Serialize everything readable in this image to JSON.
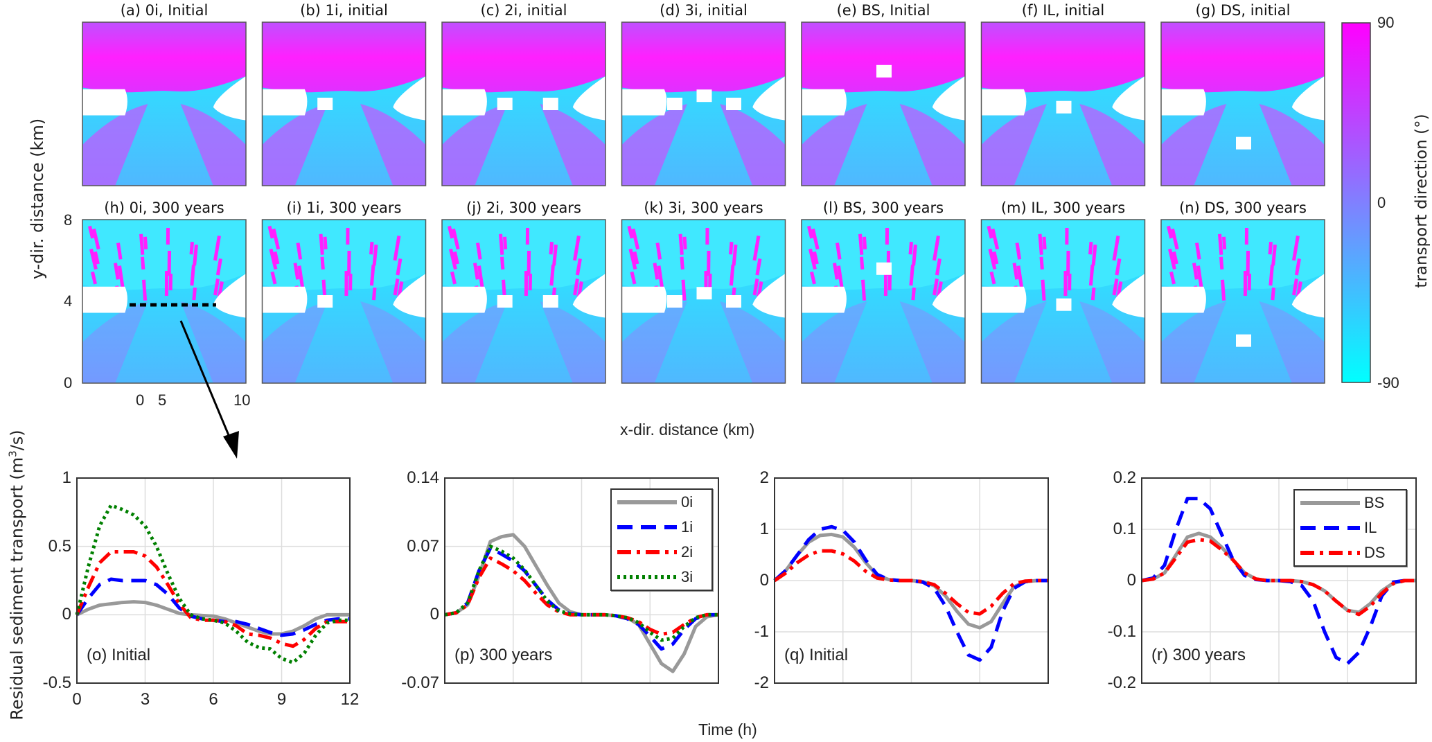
{
  "maps": {
    "panels": [
      {
        "label": "(a) 0i, Initial",
        "config": "0i",
        "time": "initial"
      },
      {
        "label": "(b) 1i, initial",
        "config": "1i",
        "time": "initial"
      },
      {
        "label": "(c) 2i, initial",
        "config": "2i",
        "time": "initial"
      },
      {
        "label": "(d) 3i, initial",
        "config": "3i",
        "time": "initial"
      },
      {
        "label": "(e) BS, Initial",
        "config": "BS",
        "time": "initial"
      },
      {
        "label": "(f) IL, initial",
        "config": "IL",
        "time": "initial"
      },
      {
        "label": "(g) DS, initial",
        "config": "DS",
        "time": "initial"
      },
      {
        "label": "(h) 0i, 300 years",
        "config": "0i",
        "time": "300"
      },
      {
        "label": "(i) 1i, 300 years",
        "config": "1i",
        "time": "300"
      },
      {
        "label": "(j) 2i, 300 years",
        "config": "2i",
        "time": "300"
      },
      {
        "label": "(k) 3i, 300 years",
        "config": "3i",
        "time": "300"
      },
      {
        "label": "(l) BS, 300 years",
        "config": "BS",
        "time": "300"
      },
      {
        "label": "(m) IL, 300 years",
        "config": "IL",
        "time": "300"
      },
      {
        "label": "(n) DS, 300 years",
        "config": "DS",
        "time": "300"
      }
    ],
    "ylabel": "y-dir. distance (km)",
    "xlabel": "x-dir. distance (km)",
    "yticks": [
      "8",
      "4",
      "0"
    ],
    "xticks": [
      "0",
      "5",
      "10"
    ],
    "colorbar": {
      "label": "transport direction (°)",
      "ticks": [
        "90",
        "0",
        "-90"
      ],
      "colors": [
        "#ff00ff",
        "#8080ff",
        "#00ffff"
      ]
    }
  },
  "bottom": {
    "ylabel": "Residual sediment transport (m",
    "ylabel_sup": "3",
    "ylabel_end": "/s)",
    "xlabel": "Time (h)",
    "xticks": [
      "0",
      "3",
      "6",
      "9",
      "12"
    ]
  },
  "chart_data": [
    {
      "type": "line",
      "title": "(o) Initial",
      "xlim": [
        0,
        12
      ],
      "ylim": [
        -0.5,
        1
      ],
      "yticks": [
        "1",
        "0.5",
        "0",
        "-0.5"
      ],
      "grid": true,
      "x": [
        0,
        0.5,
        1,
        1.5,
        2,
        2.5,
        3,
        3.5,
        4,
        4.5,
        5,
        5.5,
        6,
        6.5,
        7,
        7.5,
        8,
        8.5,
        9,
        9.5,
        10,
        10.5,
        11,
        11.5,
        12
      ],
      "series": [
        {
          "name": "0i",
          "color": "#999999",
          "style": "solid",
          "values": [
            0,
            0.04,
            0.07,
            0.08,
            0.09,
            0.095,
            0.09,
            0.07,
            0.04,
            0.01,
            0,
            -0.005,
            -0.01,
            -0.03,
            -0.06,
            -0.09,
            -0.12,
            -0.14,
            -0.14,
            -0.12,
            -0.08,
            -0.03,
            0,
            0,
            0
          ]
        },
        {
          "name": "1i",
          "color": "#0000ff",
          "style": "dash",
          "values": [
            0,
            0.12,
            0.22,
            0.26,
            0.25,
            0.25,
            0.25,
            0.22,
            0.15,
            0.05,
            -0.01,
            -0.03,
            -0.04,
            -0.05,
            -0.05,
            -0.07,
            -0.1,
            -0.13,
            -0.15,
            -0.14,
            -0.11,
            -0.07,
            -0.04,
            -0.03,
            -0.03
          ]
        },
        {
          "name": "2i",
          "color": "#ff0000",
          "style": "dashdot",
          "values": [
            0,
            0.2,
            0.38,
            0.46,
            0.46,
            0.46,
            0.43,
            0.35,
            0.22,
            0.08,
            -0.02,
            -0.04,
            -0.04,
            -0.05,
            -0.08,
            -0.14,
            -0.15,
            -0.17,
            -0.21,
            -0.23,
            -0.18,
            -0.1,
            -0.05,
            -0.05,
            -0.05
          ]
        },
        {
          "name": "3i",
          "color": "#008000",
          "style": "dot",
          "values": [
            0,
            0.35,
            0.65,
            0.8,
            0.77,
            0.73,
            0.65,
            0.5,
            0.3,
            0.12,
            0,
            -0.03,
            -0.04,
            -0.06,
            -0.12,
            -0.2,
            -0.24,
            -0.25,
            -0.32,
            -0.35,
            -0.28,
            -0.15,
            -0.06,
            -0.04,
            -0.04
          ]
        }
      ]
    },
    {
      "type": "line",
      "title": "(p) 300 years",
      "xlim": [
        0,
        12
      ],
      "ylim": [
        -0.07,
        0.14
      ],
      "yticks": [
        "0.14",
        "0.07",
        "0",
        "-0.07"
      ],
      "grid": true,
      "legend": "top-right",
      "x": [
        0,
        0.5,
        1,
        1.5,
        2,
        2.5,
        3,
        3.5,
        4,
        4.5,
        5,
        5.5,
        6,
        6.5,
        7,
        7.5,
        8,
        8.5,
        9,
        9.5,
        10,
        10.5,
        11,
        11.5,
        12
      ],
      "series": [
        {
          "name": "0i",
          "color": "#999999",
          "style": "solid",
          "values": [
            0,
            0.002,
            0.01,
            0.04,
            0.075,
            0.08,
            0.082,
            0.07,
            0.05,
            0.03,
            0.012,
            0.003,
            0,
            0,
            0,
            -0.001,
            -0.003,
            -0.01,
            -0.03,
            -0.05,
            -0.058,
            -0.04,
            -0.012,
            -0.002,
            0
          ]
        },
        {
          "name": "1i",
          "color": "#0000ff",
          "style": "dash",
          "values": [
            0,
            0.002,
            0.012,
            0.045,
            0.068,
            0.062,
            0.055,
            0.045,
            0.03,
            0.015,
            0.005,
            0.001,
            0,
            0,
            0,
            -0.001,
            -0.004,
            -0.01,
            -0.022,
            -0.035,
            -0.03,
            -0.015,
            -0.004,
            0,
            0
          ]
        },
        {
          "name": "2i",
          "color": "#ff0000",
          "style": "dashdot",
          "values": [
            0,
            0.002,
            0.01,
            0.038,
            0.058,
            0.052,
            0.045,
            0.035,
            0.022,
            0.01,
            0.003,
            0,
            0,
            0,
            0,
            -0.001,
            -0.003,
            -0.007,
            -0.015,
            -0.02,
            -0.018,
            -0.01,
            -0.003,
            0,
            0
          ]
        },
        {
          "name": "3i",
          "color": "#008000",
          "style": "dot",
          "values": [
            0,
            0.002,
            0.012,
            0.045,
            0.07,
            0.065,
            0.058,
            0.046,
            0.03,
            0.014,
            0.004,
            0.001,
            0,
            0,
            0,
            -0.001,
            -0.003,
            -0.008,
            -0.018,
            -0.026,
            -0.024,
            -0.012,
            -0.003,
            0,
            0
          ]
        }
      ]
    },
    {
      "type": "line",
      "title": "(q) Initial",
      "xlim": [
        0,
        12
      ],
      "ylim": [
        -2,
        2
      ],
      "yticks": [
        "2",
        "1",
        "0",
        "-1",
        "-2"
      ],
      "grid": true,
      "x": [
        0,
        0.5,
        1,
        1.5,
        2,
        2.5,
        3,
        3.5,
        4,
        4.5,
        5,
        5.5,
        6,
        6.5,
        7,
        7.5,
        8,
        8.5,
        9,
        9.5,
        10,
        10.5,
        11,
        11.5,
        12
      ],
      "series": [
        {
          "name": "BS",
          "color": "#999999",
          "style": "solid",
          "values": [
            0,
            0.2,
            0.5,
            0.75,
            0.88,
            0.9,
            0.85,
            0.65,
            0.35,
            0.1,
            0.02,
            0,
            0,
            -0.02,
            -0.1,
            -0.3,
            -0.6,
            -0.85,
            -0.92,
            -0.8,
            -0.45,
            -0.12,
            -0.02,
            0,
            0
          ]
        },
        {
          "name": "IL",
          "color": "#0000ff",
          "style": "dash",
          "values": [
            0,
            0.2,
            0.5,
            0.8,
            1.0,
            1.05,
            0.98,
            0.75,
            0.4,
            0.12,
            0.02,
            0,
            0,
            -0.03,
            -0.15,
            -0.5,
            -1.0,
            -1.45,
            -1.55,
            -1.3,
            -0.6,
            -0.15,
            -0.02,
            0,
            0
          ]
        },
        {
          "name": "DS",
          "color": "#ff0000",
          "style": "dashdot",
          "values": [
            0,
            0.15,
            0.35,
            0.5,
            0.58,
            0.58,
            0.52,
            0.38,
            0.18,
            0.05,
            0.01,
            0,
            0,
            -0.02,
            -0.08,
            -0.25,
            -0.45,
            -0.62,
            -0.65,
            -0.5,
            -0.25,
            -0.06,
            -0.01,
            0,
            0
          ]
        }
      ]
    },
    {
      "type": "line",
      "title": "(r) 300 years",
      "xlim": [
        0,
        12
      ],
      "ylim": [
        -0.2,
        0.2
      ],
      "yticks": [
        "0.2",
        "0.1",
        "0",
        "-0.1",
        "-0.2"
      ],
      "grid": true,
      "legend": "top-right",
      "x": [
        0,
        0.5,
        1,
        1.5,
        2,
        2.5,
        3,
        3.5,
        4,
        4.5,
        5,
        5.5,
        6,
        6.5,
        7,
        7.5,
        8,
        8.5,
        9,
        9.5,
        10,
        10.5,
        11,
        11.5,
        12
      ],
      "series": [
        {
          "name": "BS",
          "color": "#999999",
          "style": "solid",
          "values": [
            0,
            0.003,
            0.015,
            0.05,
            0.085,
            0.092,
            0.085,
            0.065,
            0.04,
            0.015,
            0.003,
            0,
            0,
            0,
            -0.002,
            -0.008,
            -0.02,
            -0.04,
            -0.058,
            -0.062,
            -0.045,
            -0.02,
            -0.005,
            0,
            0
          ]
        },
        {
          "name": "IL",
          "color": "#0000ff",
          "style": "dash",
          "values": [
            0,
            0.005,
            0.03,
            0.1,
            0.16,
            0.16,
            0.14,
            0.09,
            0.04,
            0.01,
            0.002,
            0,
            0,
            -0.002,
            -0.01,
            -0.04,
            -0.1,
            -0.15,
            -0.162,
            -0.14,
            -0.09,
            -0.03,
            -0.003,
            0,
            0
          ]
        },
        {
          "name": "DS",
          "color": "#ff0000",
          "style": "dashdot",
          "values": [
            0,
            0.003,
            0.015,
            0.045,
            0.075,
            0.08,
            0.077,
            0.06,
            0.04,
            0.015,
            0.003,
            0,
            0,
            0,
            -0.002,
            -0.008,
            -0.02,
            -0.04,
            -0.058,
            -0.066,
            -0.05,
            -0.025,
            -0.006,
            0,
            0
          ]
        }
      ]
    }
  ]
}
